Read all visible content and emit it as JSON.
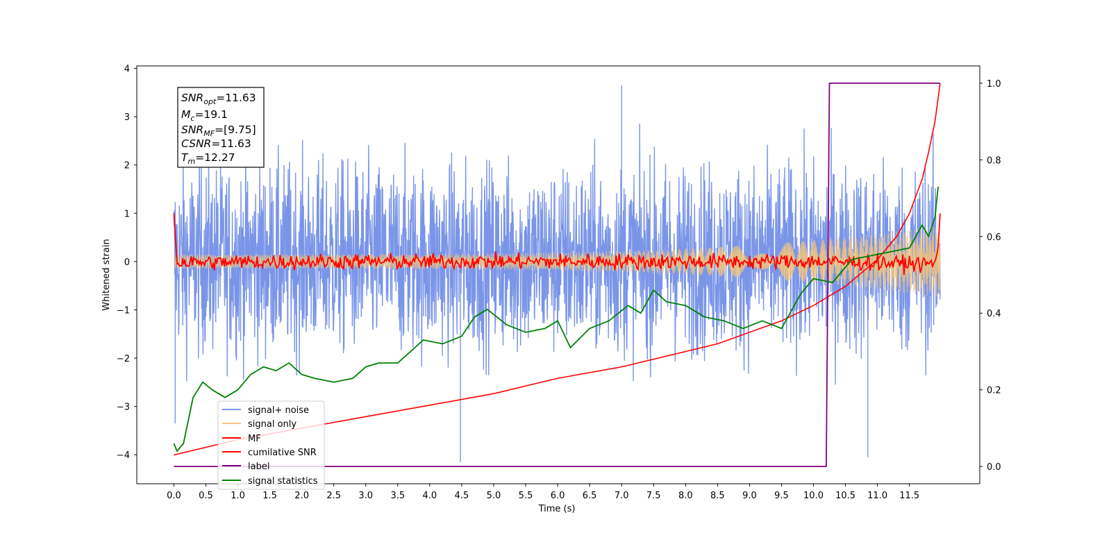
{
  "chart_data": {
    "type": "line",
    "xlabel": "Time (s)",
    "ylabel": "Whitened strain",
    "xlim": [
      -0.58,
      12.6
    ],
    "ylim": [
      -4.6,
      4.05
    ],
    "y2lim": [
      -0.045,
      1.045
    ],
    "x_ticks": [
      "0.0",
      "0.5",
      "1.0",
      "1.5",
      "2.0",
      "2.5",
      "3.0",
      "3.5",
      "4.0",
      "4.5",
      "5.0",
      "5.5",
      "6.0",
      "6.5",
      "7.0",
      "7.5",
      "8.0",
      "8.5",
      "9.0",
      "9.5",
      "10.0",
      "10.5",
      "11.0",
      "11.5"
    ],
    "y_ticks": [
      "4",
      "3",
      "2",
      "1",
      "0",
      "−1",
      "−2",
      "−3",
      "−4"
    ],
    "y2_ticks": [
      "1.0",
      "0.8",
      "0.6",
      "0.4",
      "0.2",
      "0.0"
    ],
    "info_box": {
      "line1": {
        "main": "SNR",
        "sub": "opt",
        "rest": "=11.63"
      },
      "line2": {
        "main": "M",
        "sub": "c",
        "rest": "=19.1"
      },
      "line3": {
        "main": "SNR",
        "sub": "MF",
        "rest": "=[9.75]"
      },
      "line4": {
        "main": "CSNR",
        "sub": "",
        "rest": "=11.63"
      },
      "line5": {
        "main": "T",
        "sub": "m",
        "rest": "=12.27"
      }
    },
    "legend_placement": "lower-left",
    "series": [
      {
        "name": "signal+ noise",
        "color": "#7a95e8",
        "axis": "left",
        "style": "noisy band",
        "x_range": [
          0.0,
          11.98
        ],
        "typical_range": [
          -1.5,
          1.6
        ],
        "extremes": [
          [
            0.02,
            -3.35
          ],
          [
            4.48,
            -4.15
          ],
          [
            7.0,
            3.65
          ],
          [
            10.85,
            -4.05
          ]
        ]
      },
      {
        "name": "signal only",
        "color": "#f5c67a",
        "axis": "left",
        "style": "chirp",
        "x_range": [
          0.0,
          11.98
        ],
        "amplitude_start": 0.15,
        "amplitude_end": 0.75
      },
      {
        "name": "MF",
        "color": "#ff0000",
        "axis": "left",
        "x": [
          0.0,
          0.05,
          0.1,
          2.0,
          4.0,
          6.0,
          8.0,
          10.0,
          11.9,
          11.95,
          11.98
        ],
        "y": [
          1.0,
          -0.05,
          -0.02,
          0.0,
          0.0,
          0.0,
          0.0,
          0.0,
          -0.05,
          0.3,
          1.0
        ],
        "noise_amplitude": 0.08
      },
      {
        "name": "cumilative SNR",
        "color": "#ff0000",
        "axis": "right",
        "x": [
          0.0,
          0.5,
          1.0,
          2.0,
          3.0,
          4.0,
          5.0,
          6.0,
          7.0,
          8.0,
          8.5,
          9.0,
          9.5,
          10.0,
          10.5,
          11.0,
          11.3,
          11.5,
          11.7,
          11.8,
          11.9,
          11.98
        ],
        "y": [
          0.03,
          0.05,
          0.07,
          0.1,
          0.13,
          0.16,
          0.19,
          0.23,
          0.26,
          0.3,
          0.32,
          0.35,
          0.38,
          0.42,
          0.47,
          0.54,
          0.6,
          0.66,
          0.75,
          0.82,
          0.9,
          1.0
        ]
      },
      {
        "name": "label",
        "color": "#800080",
        "axis": "right",
        "x": [
          0.0,
          10.2,
          10.25,
          11.98
        ],
        "y": [
          0.0,
          0.0,
          1.0,
          1.0
        ]
      },
      {
        "name": "signal statistics",
        "color": "#008000",
        "axis": "right",
        "x": [
          0.0,
          0.05,
          0.15,
          0.3,
          0.45,
          0.6,
          0.8,
          1.0,
          1.2,
          1.4,
          1.6,
          1.8,
          2.0,
          2.2,
          2.5,
          2.8,
          3.0,
          3.2,
          3.5,
          3.7,
          3.9,
          4.2,
          4.5,
          4.7,
          4.9,
          5.2,
          5.5,
          5.8,
          6.0,
          6.2,
          6.5,
          6.8,
          7.1,
          7.3,
          7.5,
          7.7,
          8.0,
          8.3,
          8.6,
          8.9,
          9.2,
          9.5,
          9.8,
          10.0,
          10.3,
          10.6,
          10.9,
          11.2,
          11.5,
          11.7,
          11.8,
          11.9,
          11.95
        ],
        "y": [
          0.06,
          0.04,
          0.06,
          0.18,
          0.22,
          0.2,
          0.18,
          0.2,
          0.24,
          0.26,
          0.25,
          0.27,
          0.24,
          0.23,
          0.22,
          0.23,
          0.26,
          0.27,
          0.27,
          0.3,
          0.33,
          0.32,
          0.34,
          0.39,
          0.41,
          0.37,
          0.35,
          0.36,
          0.38,
          0.31,
          0.36,
          0.38,
          0.42,
          0.4,
          0.46,
          0.43,
          0.42,
          0.39,
          0.38,
          0.36,
          0.38,
          0.36,
          0.45,
          0.49,
          0.48,
          0.54,
          0.55,
          0.56,
          0.57,
          0.63,
          0.6,
          0.65,
          0.73
        ]
      }
    ]
  }
}
